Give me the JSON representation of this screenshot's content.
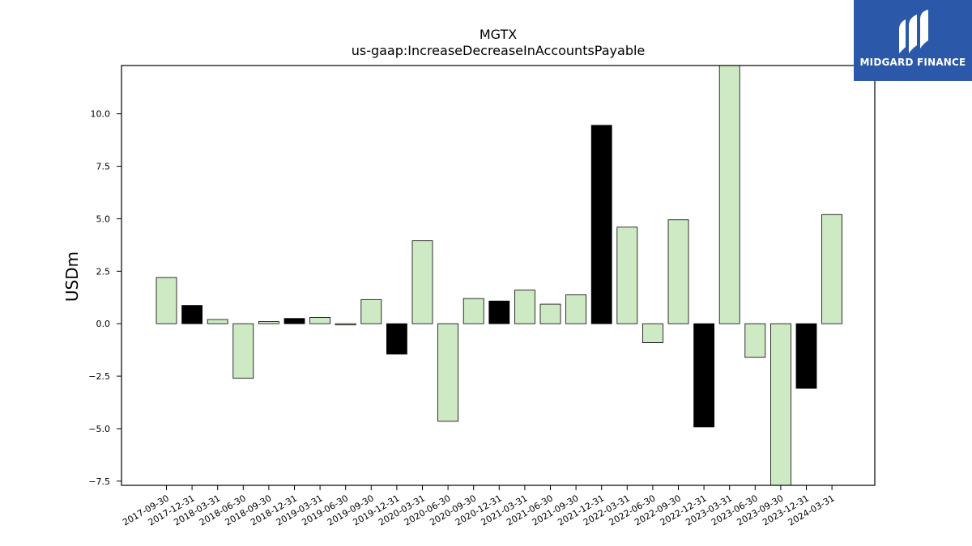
{
  "chart_data": {
    "type": "bar",
    "title": "MGTX",
    "subtitle": "us-gaap:IncreaseDecreaseInAccountsPayable",
    "ylabel": "USDm",
    "xlabel": "",
    "ylim": [
      -7.7,
      12.3
    ],
    "yticks": [
      -7.5,
      -5.0,
      -2.5,
      0.0,
      2.5,
      5.0,
      7.5,
      10.0
    ],
    "ytick_labels": [
      "−7.5",
      "−5.0",
      "−2.5",
      "0.0",
      "2.5",
      "5.0",
      "7.5",
      "10.0"
    ],
    "grid": false,
    "categories": [
      "2017-09-30",
      "2017-12-31",
      "2018-03-31",
      "2018-06-30",
      "2018-09-30",
      "2018-12-31",
      "2019-03-31",
      "2019-06-30",
      "2019-09-30",
      "2019-12-31",
      "2020-03-31",
      "2020-06-30",
      "2020-09-30",
      "2020-12-31",
      "2021-03-31",
      "2021-06-30",
      "2021-09-30",
      "2021-12-31",
      "2022-03-31",
      "2022-06-30",
      "2022-09-30",
      "2022-12-31",
      "2023-03-31",
      "2023-06-30",
      "2023-09-30",
      "2023-12-31",
      "2024-03-31"
    ],
    "values": [
      2.2,
      0.87,
      0.2,
      -2.6,
      0.1,
      0.25,
      0.3,
      -0.06,
      1.15,
      -1.45,
      3.95,
      -4.65,
      1.2,
      1.08,
      1.6,
      0.93,
      1.38,
      9.45,
      4.6,
      -0.9,
      4.95,
      -4.92,
      12.4,
      -1.6,
      -7.75,
      -3.08,
      5.2
    ],
    "colors": {
      "default": "#ceeac4",
      "q4": "#000000",
      "edge": "#000000"
    }
  },
  "logo": {
    "text": "MIDGARD FINANCE",
    "background": "#2b58a8"
  }
}
